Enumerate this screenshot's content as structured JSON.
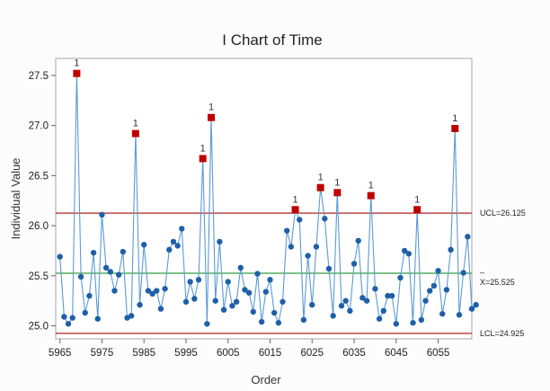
{
  "chart_data": {
    "type": "line",
    "title": "I Chart of Time",
    "xlabel": "Order",
    "ylabel": "Individual Value",
    "xlim": [
      5964,
      6063
    ],
    "ylim": [
      24.87,
      27.67
    ],
    "x_ticks": [
      5965,
      5975,
      5985,
      5995,
      6005,
      6015,
      6025,
      6035,
      6045,
      6055
    ],
    "y_ticks": [
      25.0,
      25.5,
      26.0,
      26.5,
      27.0,
      27.5
    ],
    "y_tick_labels": [
      "25.0",
      "25.5",
      "26.0",
      "26.5",
      "27.0",
      "27.5"
    ],
    "control_limits": {
      "ucl": 26.125,
      "ucl_label": "UCL=26.125",
      "center": 25.525,
      "center_label": "X=25.525",
      "center_bar": "_",
      "lcl": 24.925,
      "lcl_label": "LCL=24.925"
    },
    "flag_text": "1",
    "series": [
      {
        "x_start": 5965,
        "values": [
          25.69,
          25.09,
          25.02,
          25.08,
          27.52,
          25.49,
          25.13,
          25.3,
          25.73,
          25.07,
          26.11,
          25.58,
          25.54,
          25.35,
          25.51,
          25.74,
          25.08,
          25.1,
          26.92,
          25.21,
          25.81,
          25.35,
          25.32,
          25.35,
          25.17,
          25.37,
          25.76,
          25.84,
          25.8,
          25.97,
          25.24,
          25.44,
          25.27,
          25.46,
          26.67,
          25.02,
          27.08,
          25.25,
          25.84,
          25.16,
          25.44,
          25.2,
          25.24,
          25.58,
          25.36,
          25.33,
          25.14,
          25.52,
          25.04,
          25.34,
          25.46,
          25.13,
          25.03,
          25.24,
          25.95,
          25.79,
          26.16,
          26.06,
          25.06,
          25.7,
          25.21,
          25.79,
          26.38,
          26.07,
          25.57,
          25.1,
          26.33,
          25.2,
          25.25,
          25.15,
          25.62,
          25.85,
          25.28,
          25.25,
          26.3,
          25.37,
          25.07,
          25.15,
          25.3,
          25.3,
          25.02,
          25.48,
          25.75,
          25.72,
          25.03,
          26.16,
          25.06,
          25.25,
          25.35,
          25.4,
          25.55,
          25.12,
          25.36,
          25.76,
          26.97,
          25.11,
          25.53,
          25.89,
          25.17,
          25.21
        ]
      }
    ],
    "colors": {
      "series": "#1f5fa8",
      "line": "#5b9bd5",
      "flag": "#c00000",
      "ucl_lcl": "#b22222",
      "center": "#2e9e3e",
      "frame": "#a6a6a6"
    }
  }
}
